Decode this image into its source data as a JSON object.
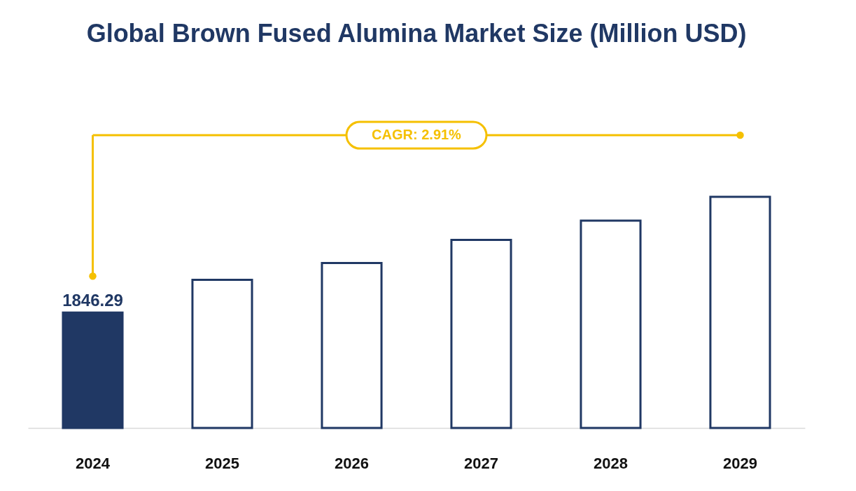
{
  "chart_data": {
    "type": "bar",
    "title": "Global Brown Fused Alumina Market Size (Million USD)",
    "categories": [
      "2024",
      "2025",
      "2026",
      "2027",
      "2028",
      "2029"
    ],
    "values": [
      1846.29,
      2370,
      2640,
      3010,
      3320,
      3700
    ],
    "colors": [
      "#203864",
      "#ffffff",
      "#ffffff",
      "#ffffff",
      "#ffffff",
      "#ffffff"
    ],
    "value_labels": [
      "1846.29",
      null,
      null,
      null,
      null,
      null
    ],
    "annotations": [
      "CAGR: 2.91%"
    ],
    "grid": false
  }
}
